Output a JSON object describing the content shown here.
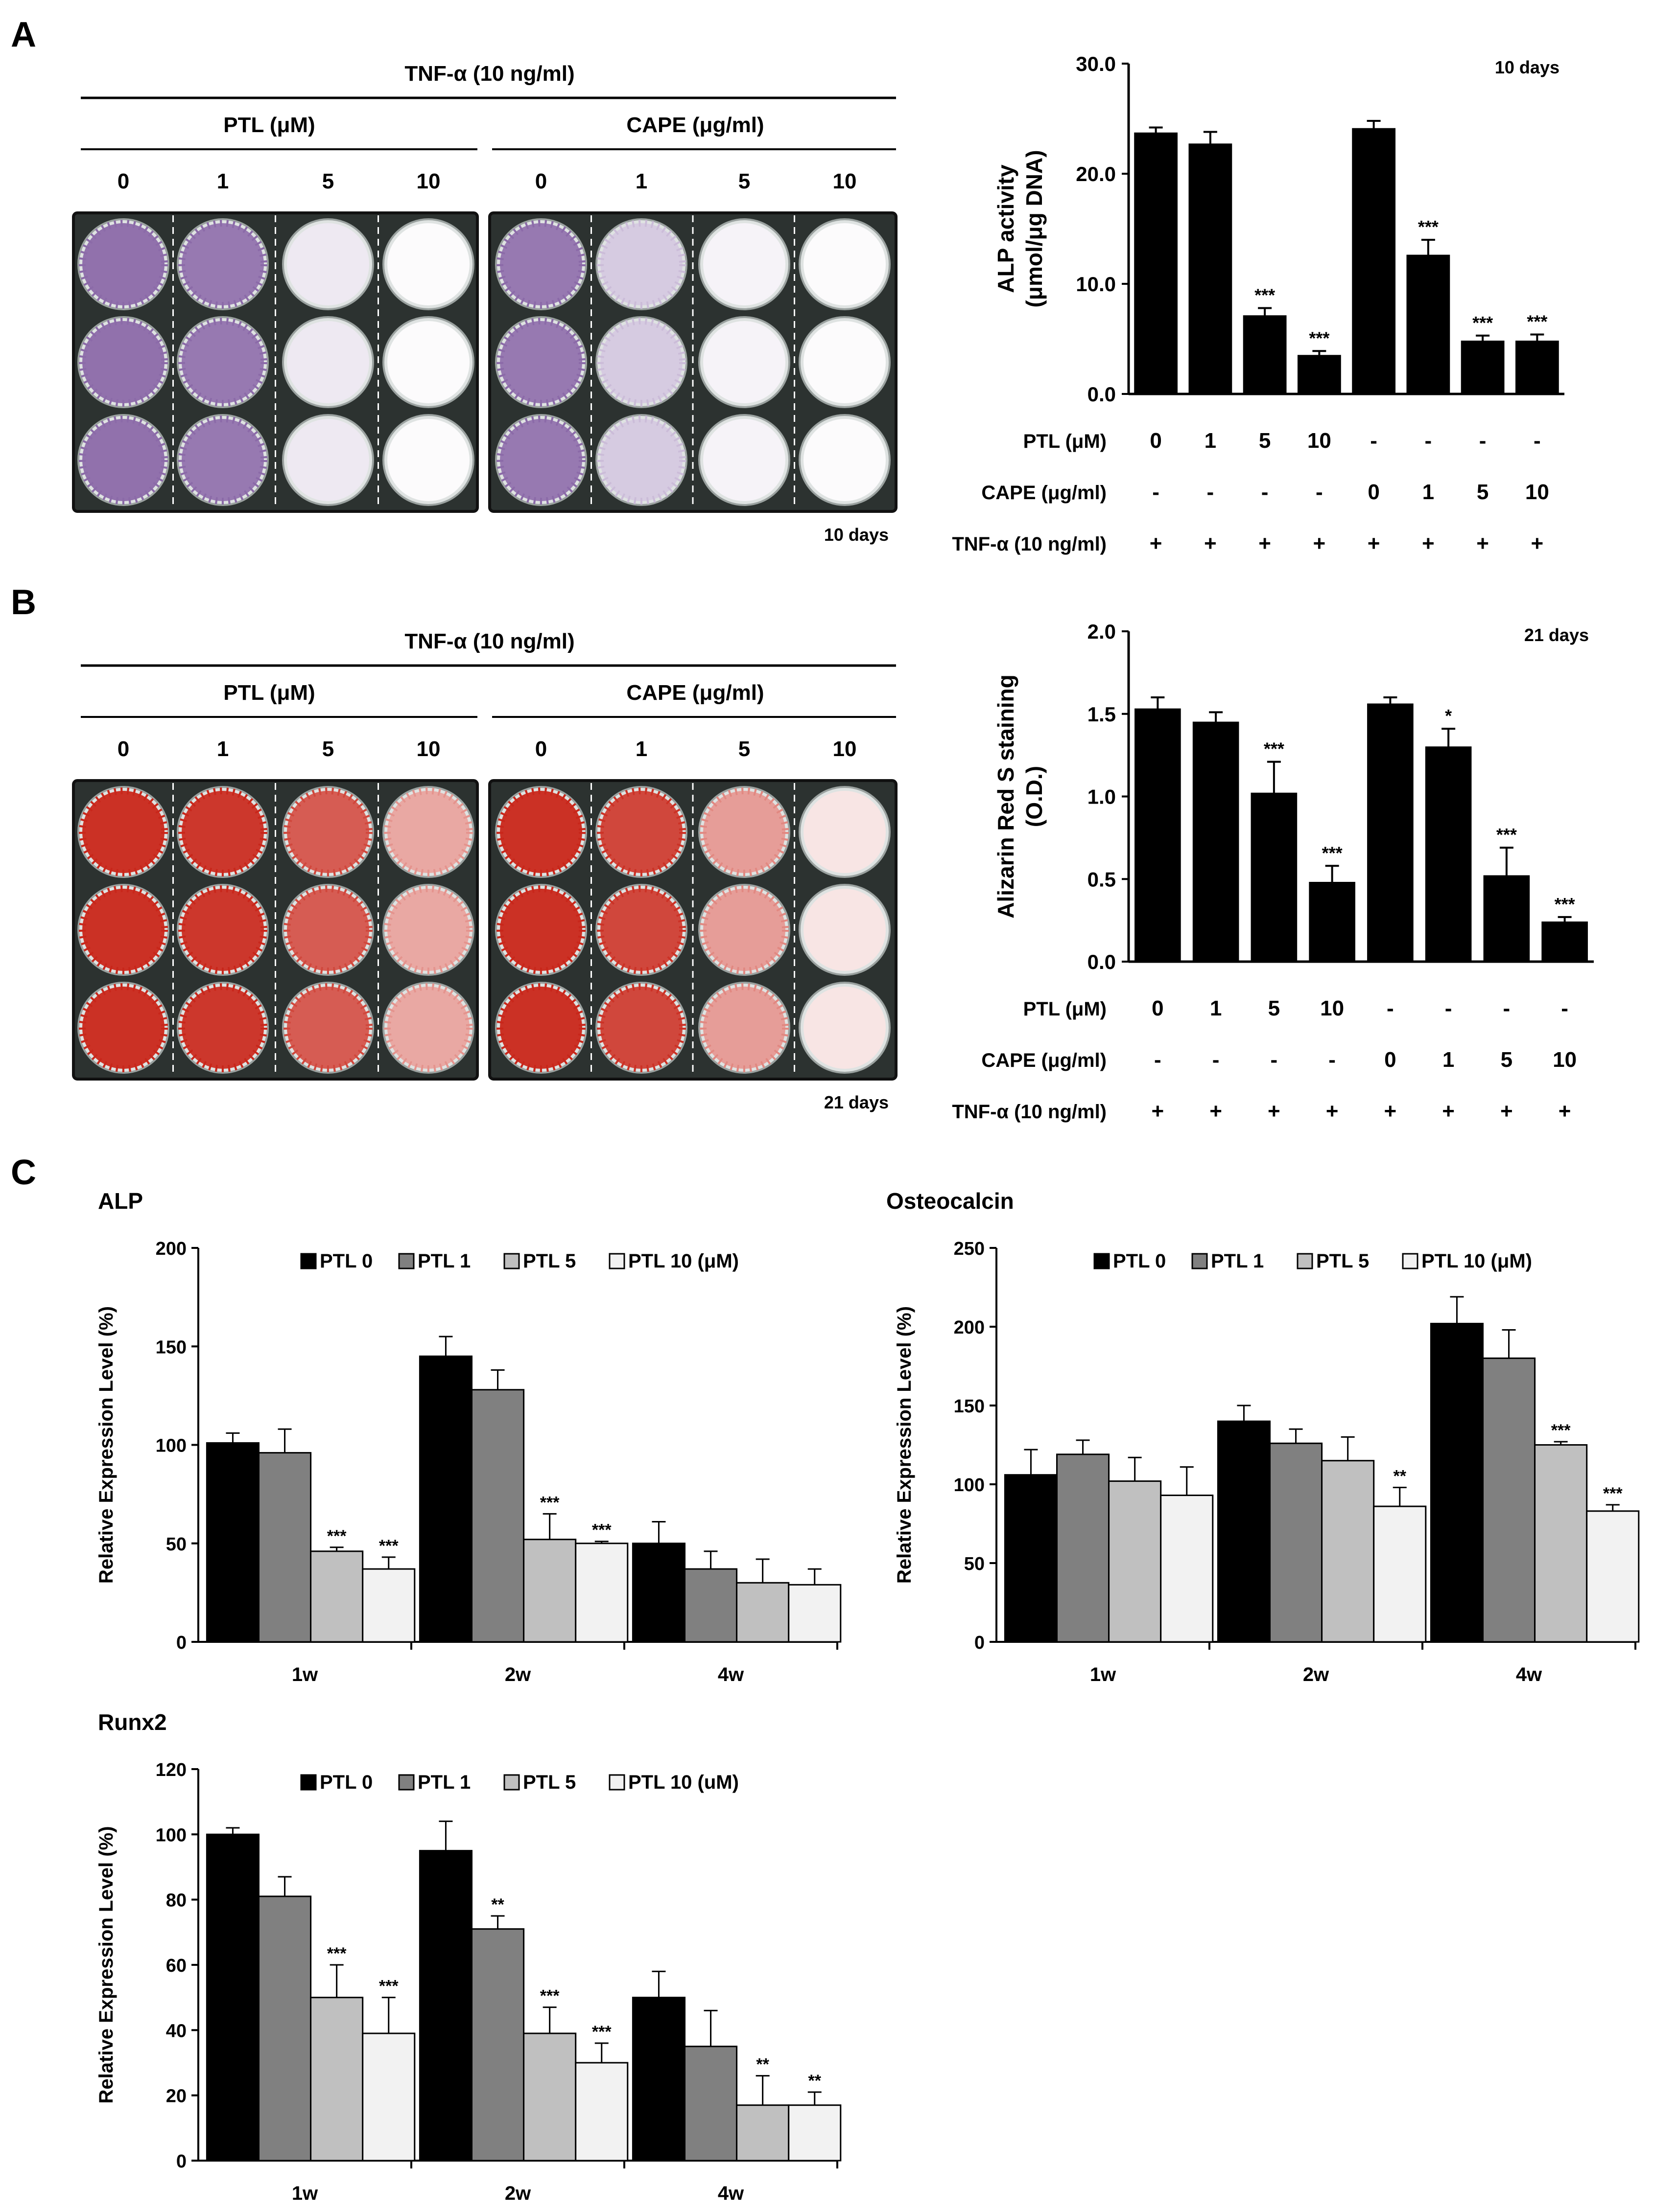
{
  "panels": {
    "A": {
      "letter": "A",
      "plate": {
        "treatment": "TNF-α (10 ng/ml)",
        "groups": [
          {
            "label": "PTL (μM)",
            "doses": [
              "0",
              "1",
              "5",
              "10"
            ]
          },
          {
            "label": "CAPE (μg/ml)",
            "doses": [
              "0",
              "1",
              "5",
              "10"
            ]
          }
        ],
        "stain_color": "#8b6aa8",
        "stain_intensity": [
          [
            0.95,
            0.9,
            0.15,
            0.02
          ],
          [
            0.9,
            0.35,
            0.08,
            0.03
          ]
        ],
        "time": "10 days"
      },
      "table": {
        "row_labels": [
          "PTL (μM)",
          "CAPE (μg/ml)",
          "TNF-α (10 ng/ml)"
        ],
        "rows": [
          [
            "0",
            "1",
            "5",
            "10",
            "-",
            "-",
            "-",
            "-"
          ],
          [
            "-",
            "-",
            "-",
            "-",
            "0",
            "1",
            "5",
            "10"
          ],
          [
            "+",
            "+",
            "+",
            "+",
            "+",
            "+",
            "+",
            "+"
          ]
        ]
      }
    },
    "B": {
      "letter": "B",
      "plate": {
        "treatment": "TNF-α (10 ng/ml)",
        "groups": [
          {
            "label": "PTL (μM)",
            "doses": [
              "0",
              "1",
              "5",
              "10"
            ]
          },
          {
            "label": "CAPE (μg/ml)",
            "doses": [
              "0",
              "1",
              "5",
              "10"
            ]
          }
        ],
        "stain_color": "#c8261a",
        "stain_intensity": [
          [
            0.95,
            0.92,
            0.75,
            0.4
          ],
          [
            0.95,
            0.85,
            0.45,
            0.12
          ]
        ],
        "time": "21 days"
      },
      "table": {
        "row_labels": [
          "PTL (μM)",
          "CAPE (μg/ml)",
          "TNF-α (10 ng/ml)"
        ],
        "rows": [
          [
            "0",
            "1",
            "5",
            "10",
            "-",
            "-",
            "-",
            "-"
          ],
          [
            "-",
            "-",
            "-",
            "-",
            "0",
            "1",
            "5",
            "10"
          ],
          [
            "+",
            "+",
            "+",
            "+",
            "+",
            "+",
            "+",
            "+"
          ]
        ]
      }
    },
    "C": {
      "letter": "C"
    }
  },
  "chart_data": [
    {
      "id": "A-bar",
      "type": "bar",
      "title": "",
      "annotation": "10 days",
      "ylabel": [
        "ALP activity",
        "(μmol/μg DNA)"
      ],
      "ylim": [
        0,
        30
      ],
      "yticks": [
        "0.0",
        "10.0",
        "20.0",
        "30.0"
      ],
      "yticks_values": [
        0,
        10,
        20,
        30
      ],
      "values": [
        23.7,
        22.7,
        7.1,
        3.5,
        24.1,
        12.6,
        4.8,
        4.8
      ],
      "errors": [
        0.5,
        1.1,
        0.7,
        0.4,
        0.7,
        1.4,
        0.5,
        0.6
      ],
      "significance": [
        "",
        "",
        "***",
        "***",
        "",
        "***",
        "***",
        "***"
      ],
      "color": "#000000"
    },
    {
      "id": "B-bar",
      "type": "bar",
      "title": "",
      "annotation": "21 days",
      "ylabel": [
        "Alizarin Red S staining",
        "(O.D.)"
      ],
      "ylim": [
        0,
        2
      ],
      "yticks": [
        "0.0",
        "0.5",
        "1.0",
        "1.5",
        "2.0"
      ],
      "yticks_values": [
        0,
        0.5,
        1,
        1.5,
        2
      ],
      "values": [
        1.53,
        1.45,
        1.02,
        0.48,
        1.56,
        1.3,
        0.52,
        0.24
      ],
      "errors": [
        0.07,
        0.06,
        0.19,
        0.1,
        0.04,
        0.11,
        0.17,
        0.03
      ],
      "significance": [
        "",
        "",
        "***",
        "***",
        "",
        "*",
        "***",
        "***"
      ],
      "color": "#000000"
    },
    {
      "id": "C-ALP",
      "type": "bar",
      "title": "ALP",
      "ylabel": "Relative Expression Level (%)",
      "ylim": [
        0,
        200
      ],
      "yticks": [
        "0",
        "50",
        "100",
        "150",
        "200"
      ],
      "yticks_values": [
        0,
        50,
        100,
        150,
        200
      ],
      "categories": [
        "1w",
        "2w",
        "4w"
      ],
      "legend": [
        "PTL 0",
        "PTL 1",
        "PTL 5",
        "PTL 10 (μM)"
      ],
      "series": [
        {
          "name": "PTL 0",
          "color": "#000000",
          "values": [
            101,
            145,
            50
          ],
          "errors": [
            5,
            10,
            11
          ],
          "significance": [
            "",
            "",
            ""
          ]
        },
        {
          "name": "PTL 1",
          "color": "#808080",
          "values": [
            96,
            128,
            37
          ],
          "errors": [
            12,
            10,
            9
          ],
          "significance": [
            "",
            "",
            ""
          ]
        },
        {
          "name": "PTL 5",
          "color": "#c0c0c0",
          "values": [
            46,
            52,
            30
          ],
          "errors": [
            2,
            13,
            12
          ],
          "significance": [
            "***",
            "***",
            ""
          ]
        },
        {
          "name": "PTL 10 (μM)",
          "color": "#f2f2f2",
          "values": [
            37,
            50,
            29
          ],
          "errors": [
            6,
            1,
            8
          ],
          "significance": [
            "***",
            "***",
            ""
          ]
        }
      ]
    },
    {
      "id": "C-Osteocalcin",
      "type": "bar",
      "title": "Osteocalcin",
      "ylabel": "Relative Expression Level (%)",
      "ylim": [
        0,
        250
      ],
      "yticks": [
        "0",
        "50",
        "100",
        "150",
        "200",
        "250"
      ],
      "yticks_values": [
        0,
        50,
        100,
        150,
        200,
        250
      ],
      "categories": [
        "1w",
        "2w",
        "4w"
      ],
      "legend": [
        "PTL 0",
        "PTL 1",
        "PTL 5",
        "PTL 10 (μM)"
      ],
      "series": [
        {
          "name": "PTL 0",
          "color": "#000000",
          "values": [
            106,
            140,
            202
          ],
          "errors": [
            16,
            10,
            17
          ],
          "significance": [
            "",
            "",
            ""
          ]
        },
        {
          "name": "PTL 1",
          "color": "#808080",
          "values": [
            119,
            126,
            180
          ],
          "errors": [
            9,
            9,
            18
          ],
          "significance": [
            "",
            "",
            ""
          ]
        },
        {
          "name": "PTL 5",
          "color": "#c0c0c0",
          "values": [
            102,
            115,
            125
          ],
          "errors": [
            15,
            15,
            2
          ],
          "significance": [
            "",
            "",
            "***"
          ]
        },
        {
          "name": "PTL 10 (μM)",
          "color": "#f2f2f2",
          "values": [
            93,
            86,
            83
          ],
          "errors": [
            18,
            12,
            4
          ],
          "significance": [
            "",
            "**",
            "***"
          ]
        }
      ]
    },
    {
      "id": "C-Runx2",
      "type": "bar",
      "title": "Runx2",
      "ylabel": "Relative Expression Level (%)",
      "ylim": [
        0,
        120
      ],
      "yticks": [
        "0",
        "20",
        "40",
        "60",
        "80",
        "100",
        "120"
      ],
      "yticks_values": [
        0,
        20,
        40,
        60,
        80,
        100,
        120
      ],
      "categories": [
        "1w",
        "2w",
        "4w"
      ],
      "legend": [
        "PTL 0",
        "PTL 1",
        "PTL 5",
        "PTL 10 (uM)"
      ],
      "series": [
        {
          "name": "PTL 0",
          "color": "#000000",
          "values": [
            100,
            95,
            50
          ],
          "errors": [
            2,
            9,
            8
          ],
          "significance": [
            "",
            "",
            ""
          ]
        },
        {
          "name": "PTL 1",
          "color": "#808080",
          "values": [
            81,
            71,
            35
          ],
          "errors": [
            6,
            4,
            11
          ],
          "significance": [
            "",
            "**",
            ""
          ]
        },
        {
          "name": "PTL 5",
          "color": "#c0c0c0",
          "values": [
            50,
            39,
            17
          ],
          "errors": [
            10,
            8,
            9
          ],
          "significance": [
            "***",
            "***",
            "**"
          ]
        },
        {
          "name": "PTL 10 (uM)",
          "color": "#f2f2f2",
          "values": [
            39,
            30,
            17
          ],
          "errors": [
            11,
            6,
            4
          ],
          "significance": [
            "***",
            "***",
            "**"
          ]
        }
      ]
    }
  ]
}
